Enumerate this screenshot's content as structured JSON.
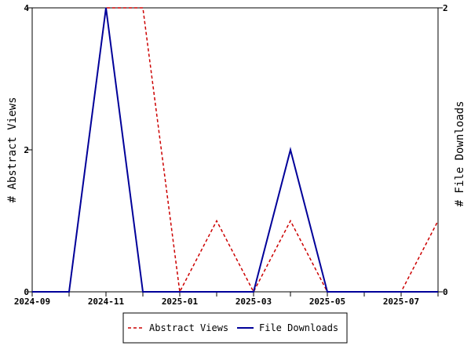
{
  "chart_data": {
    "type": "line",
    "title": "",
    "x": [
      "2024-09",
      "2024-10",
      "2024-11",
      "2024-12",
      "2025-01",
      "2025-02",
      "2025-03",
      "2025-04",
      "2025-05",
      "2025-06",
      "2025-07",
      "2025-08"
    ],
    "x_tick_labels": [
      "2024-09",
      "2024-11",
      "2025-01",
      "2025-03",
      "2025-05",
      "2025-07"
    ],
    "xlim": [
      "2024-09",
      "2025-08"
    ],
    "y_left": {
      "label": "# Abstract Views",
      "ylim": [
        0,
        4
      ],
      "ticks": [
        "0",
        "2",
        "4"
      ]
    },
    "y_right": {
      "label": "# File Downloads",
      "ylim": [
        0,
        2
      ],
      "ticks": [
        "0",
        "2"
      ]
    },
    "series": [
      {
        "name": "Abstract Views",
        "axis": "left",
        "color": "#cc0000",
        "style": "dashed",
        "values": [
          0,
          0,
          4,
          4,
          0,
          1,
          0,
          1,
          0,
          0,
          0,
          1
        ]
      },
      {
        "name": "File Downloads",
        "axis": "right",
        "color": "#000099",
        "style": "solid",
        "values": [
          0,
          0,
          2,
          0,
          0,
          0,
          0,
          1,
          0,
          0,
          0,
          0
        ]
      }
    ],
    "legend": {
      "placement": "bottom"
    },
    "grid": false
  }
}
